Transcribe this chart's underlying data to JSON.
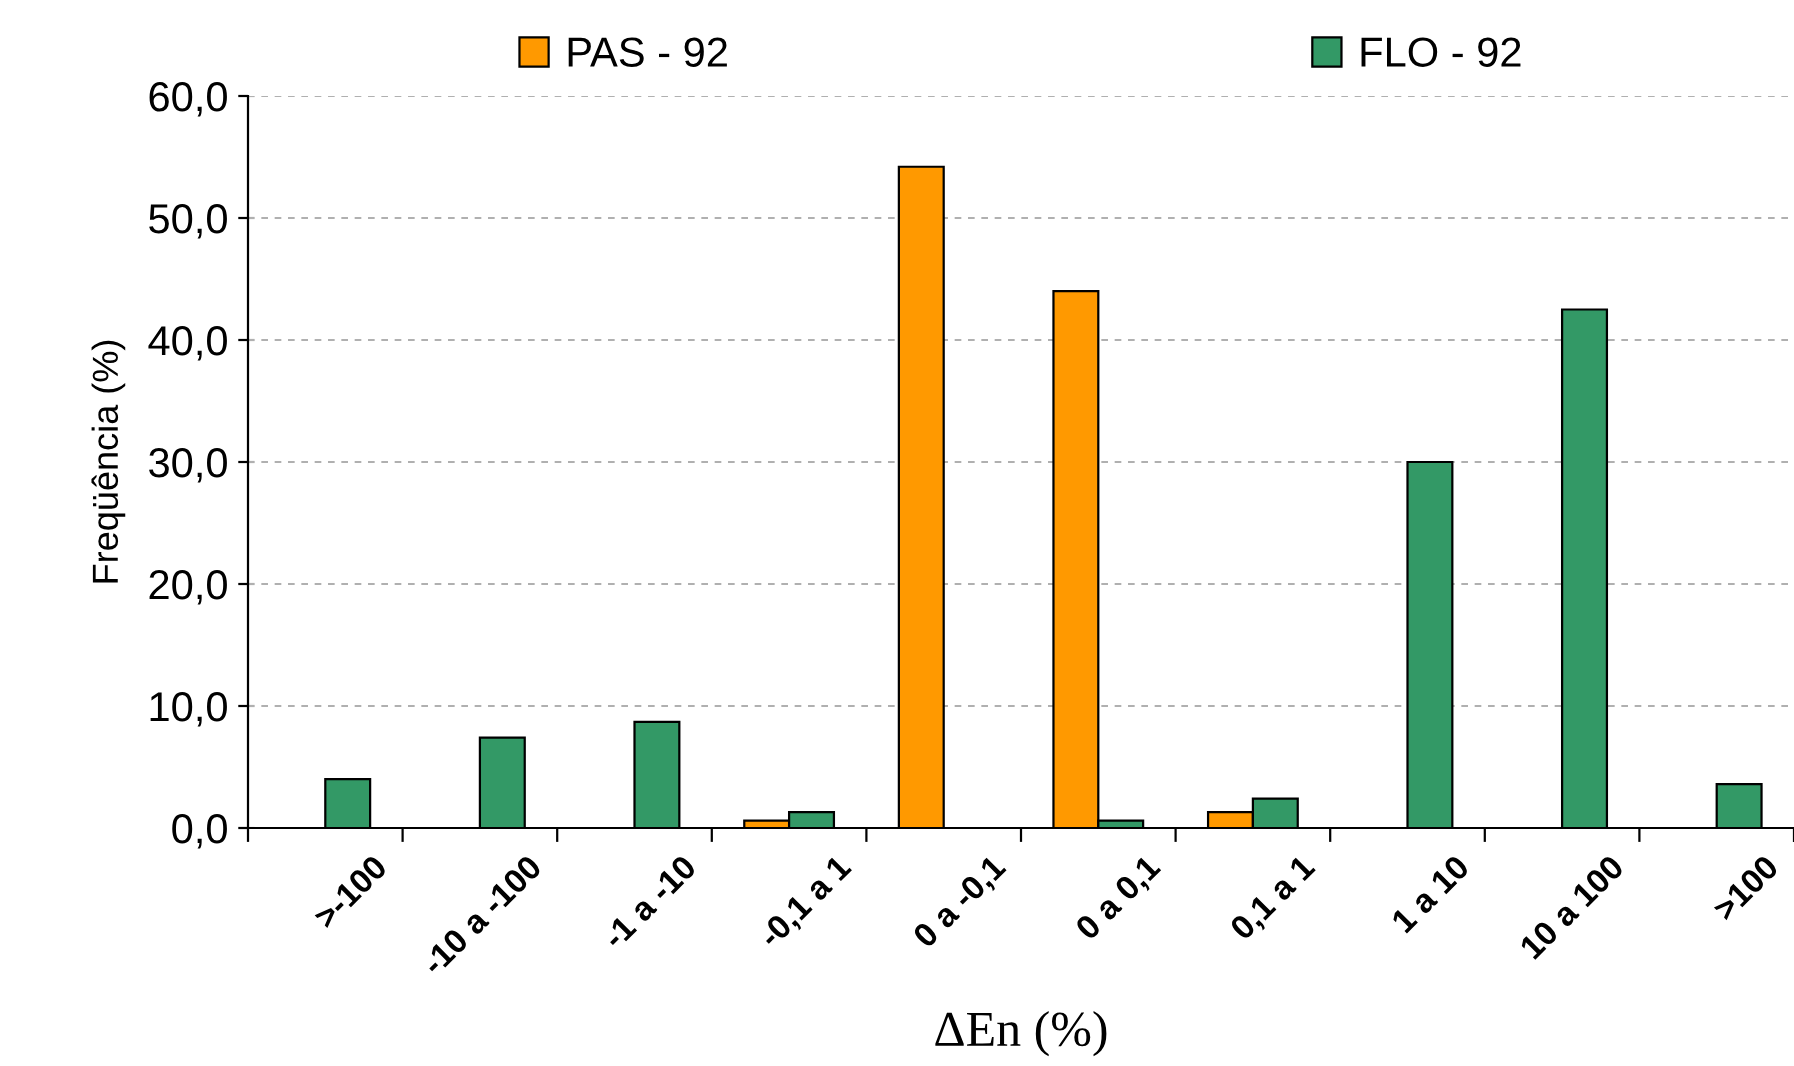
{
  "chart_data": {
    "type": "bar",
    "xlabel": "ΔEn (%)",
    "ylabel": "Freqüência (%)",
    "categories": [
      ">-100",
      "-10 a -100",
      "-1 a -10",
      "-0,1 a 1",
      "0 a -0,1",
      "0 a 0,1",
      "0,1 a 1",
      "1 a 10",
      "10 a 100",
      ">100"
    ],
    "series": [
      {
        "name": "PAS - 92",
        "color": "#ff9900",
        "values": [
          null,
          null,
          null,
          0.6,
          54.2,
          44.0,
          1.3,
          null,
          null,
          null
        ]
      },
      {
        "name": "FLO - 92",
        "color": "#339966",
        "values": [
          4.0,
          7.4,
          8.7,
          1.3,
          null,
          0.6,
          2.4,
          30.0,
          42.5,
          3.6
        ]
      }
    ],
    "ylim": [
      0,
      60
    ],
    "yticks": [
      {
        "value": 0,
        "label": "0,0"
      },
      {
        "value": 10,
        "label": "10,0"
      },
      {
        "value": 20,
        "label": "20,0"
      },
      {
        "value": 30,
        "label": "30,0"
      },
      {
        "value": 40,
        "label": "40,0"
      },
      {
        "value": 50,
        "label": "50,0"
      },
      {
        "value": 60,
        "label": "60,0"
      }
    ],
    "grid": "y",
    "legend": "top"
  }
}
